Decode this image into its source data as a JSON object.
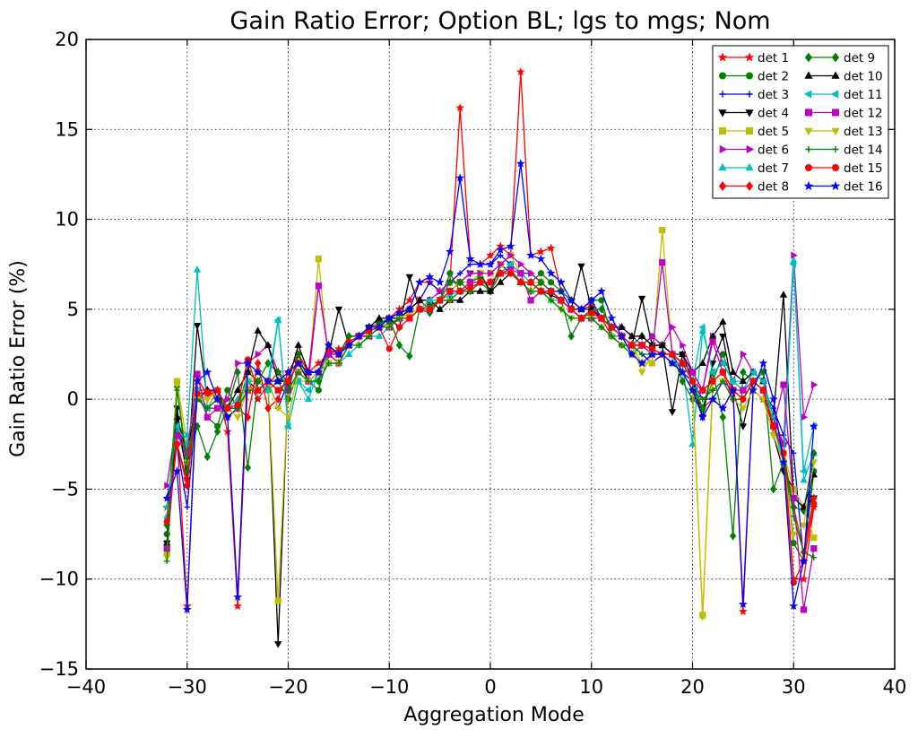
{
  "chart_data": {
    "type": "line",
    "title": "Gain Ratio Error; Option BL; lgs to mgs; Nom",
    "xlabel": "Aggregation Mode",
    "ylabel": "Gain Ratio Error (%)",
    "xlim": [
      -40,
      40
    ],
    "ylim": [
      -15,
      20
    ],
    "xticks": [
      -40,
      -30,
      -20,
      -10,
      0,
      10,
      20,
      30,
      40
    ],
    "yticks": [
      -15,
      -10,
      -5,
      0,
      5,
      10,
      15,
      20
    ],
    "xtick_labels": [
      "−40",
      "−30",
      "−20",
      "−10",
      "0",
      "10",
      "20",
      "30",
      "40"
    ],
    "ytick_labels": [
      "−15",
      "−10",
      "−5",
      "0",
      "5",
      "10",
      "15",
      "20"
    ],
    "grid": true,
    "legend_position": "top-right",
    "legend_columns": 2,
    "series": [
      {
        "name": "det 1",
        "color": "#ff0000",
        "marker": "star"
      },
      {
        "name": "det 2",
        "color": "#008000",
        "marker": "circle"
      },
      {
        "name": "det 3",
        "color": "#0000ff",
        "marker": "plus"
      },
      {
        "name": "det 4",
        "color": "#000000",
        "marker": "triangle-down"
      },
      {
        "name": "det 5",
        "color": "#bfbf00",
        "marker": "square"
      },
      {
        "name": "det 6",
        "color": "#bf00bf",
        "marker": "triangle-right"
      },
      {
        "name": "det 7",
        "color": "#00bfbf",
        "marker": "triangle-up"
      },
      {
        "name": "det 8",
        "color": "#ff0000",
        "marker": "diamond"
      },
      {
        "name": "det 9",
        "color": "#008000",
        "marker": "diamond"
      },
      {
        "name": "det 10",
        "color": "#000000",
        "marker": "triangle-up"
      },
      {
        "name": "det 11",
        "color": "#00bfbf",
        "marker": "triangle-left"
      },
      {
        "name": "det 12",
        "color": "#bf00bf",
        "marker": "square"
      },
      {
        "name": "det 13",
        "color": "#bfbf00",
        "marker": "triangle-down"
      },
      {
        "name": "det 14",
        "color": "#008000",
        "marker": "plus"
      },
      {
        "name": "det 15",
        "color": "#ff0000",
        "marker": "circle"
      },
      {
        "name": "det 16",
        "color": "#0000ff",
        "marker": "star"
      }
    ],
    "x": [
      -32,
      -31,
      -30,
      -29,
      -28,
      -27,
      -26,
      -25,
      -24,
      -23,
      -22,
      -21,
      -20,
      -19,
      -18,
      -17,
      -16,
      -15,
      -14,
      -13,
      -12,
      -11,
      -10,
      -9,
      -8,
      -7,
      -6,
      -5,
      -4,
      -3,
      -2,
      -1,
      0,
      1,
      2,
      3,
      4,
      5,
      6,
      7,
      8,
      9,
      10,
      11,
      12,
      13,
      14,
      15,
      16,
      17,
      18,
      19,
      20,
      21,
      22,
      23,
      24,
      25,
      26,
      27,
      28,
      29,
      30,
      31,
      32
    ],
    "values_by_series": [
      [
        -6.0,
        -2.0,
        -11.5,
        1.2,
        0.2,
        0.5,
        -1.8,
        -11.5,
        1.0,
        0.0,
        0.8,
        1.5,
        0.5,
        2.5,
        1.5,
        2.0,
        2.5,
        2.8,
        3.0,
        3.5,
        4.0,
        4.2,
        4.5,
        5.0,
        5.5,
        6.5,
        6.5,
        6.0,
        6.5,
        16.2,
        7.8,
        7.5,
        8.0,
        8.5,
        8.0,
        18.2,
        8.0,
        8.2,
        8.4,
        6.0,
        5.5,
        5.0,
        5.2,
        4.5,
        3.5,
        3.5,
        3.0,
        3.0,
        2.8,
        2.5,
        2.0,
        1.5,
        0.5,
        -0.5,
        0.0,
        -0.5,
        0.5,
        -11.8,
        0.5,
        0.0,
        -1.5,
        -2.5,
        -10.0,
        -10.0,
        -6.0
      ],
      [
        -7.5,
        -1.5,
        -4.0,
        0.5,
        -1.0,
        -1.5,
        0.5,
        -0.5,
        1.5,
        1.0,
        0.5,
        1.0,
        0.0,
        1.5,
        1.0,
        0.5,
        2.5,
        2.0,
        3.0,
        3.5,
        3.8,
        4.0,
        4.2,
        4.5,
        4.8,
        5.0,
        5.2,
        5.5,
        7.0,
        6.0,
        6.5,
        6.8,
        6.0,
        7.0,
        7.5,
        7.0,
        6.5,
        7.0,
        6.5,
        6.0,
        5.5,
        5.0,
        5.5,
        5.5,
        3.5,
        3.0,
        2.5,
        3.0,
        3.5,
        3.0,
        2.5,
        2.0,
        1.0,
        -0.5,
        1.0,
        2.5,
        1.0,
        0.5,
        1.5,
        1.0,
        -1.0,
        -2.5,
        -8.0,
        -9.0,
        -4.0
      ],
      [
        -5.5,
        -2.5,
        -6.0,
        0.0,
        -0.5,
        0.5,
        -1.0,
        -0.5,
        0.5,
        0.5,
        1.0,
        -0.5,
        1.0,
        2.0,
        1.5,
        1.5,
        3.0,
        2.5,
        3.5,
        3.5,
        3.8,
        4.0,
        4.5,
        4.8,
        5.0,
        5.5,
        6.5,
        6.0,
        6.5,
        7.0,
        7.5,
        7.5,
        7.5,
        8.0,
        7.5,
        7.0,
        7.0,
        6.5,
        6.0,
        6.0,
        5.0,
        5.0,
        5.5,
        4.5,
        4.0,
        3.5,
        3.0,
        2.5,
        2.0,
        2.5,
        2.5,
        1.5,
        1.0,
        0.0,
        0.0,
        1.0,
        0.5,
        0.0,
        1.0,
        0.5,
        -0.5,
        -2.0,
        -3.0,
        -9.0,
        -3.0
      ],
      [
        -8.0,
        -0.5,
        -4.5,
        4.1,
        0.0,
        0.5,
        -1.0,
        -0.5,
        1.0,
        0.5,
        1.0,
        -13.6,
        1.0,
        2.0,
        1.0,
        1.5,
        2.5,
        5.0,
        3.0,
        3.5,
        4.0,
        4.2,
        4.5,
        4.0,
        6.8,
        5.0,
        5.0,
        5.5,
        6.0,
        6.5,
        7.0,
        7.0,
        6.0,
        7.5,
        7.0,
        6.5,
        6.5,
        6.0,
        5.8,
        5.5,
        5.0,
        7.4,
        5.0,
        4.5,
        4.0,
        3.5,
        3.0,
        5.6,
        3.0,
        3.0,
        -0.7,
        2.5,
        1.0,
        -1.0,
        2.0,
        3.5,
        0.5,
        -1.5,
        1.0,
        1.5,
        -2.0,
        -4.0,
        -5.0,
        -6.0,
        -5.5
      ],
      [
        -8.5,
        1.0,
        -2.5,
        0.5,
        -0.5,
        0.5,
        -0.5,
        -0.5,
        1.0,
        1.5,
        1.0,
        -11.2,
        0.5,
        1.0,
        1.0,
        7.8,
        2.0,
        2.0,
        3.0,
        3.5,
        3.5,
        4.0,
        4.0,
        4.5,
        4.8,
        5.0,
        5.0,
        5.5,
        6.0,
        6.5,
        6.5,
        7.0,
        7.0,
        7.5,
        8.0,
        7.0,
        6.5,
        6.5,
        6.0,
        5.5,
        5.0,
        4.5,
        4.8,
        4.5,
        4.0,
        3.5,
        3.0,
        2.0,
        2.0,
        9.4,
        2.5,
        2.0,
        1.0,
        -12.0,
        1.0,
        1.5,
        0.5,
        0.5,
        1.0,
        0.5,
        -1.5,
        -3.0,
        -5.0,
        -6.0,
        -7.7
      ],
      [
        -4.8,
        -1.0,
        -3.5,
        0.5,
        -0.5,
        -0.5,
        0.0,
        2.0,
        2.0,
        2.5,
        3.0,
        1.5,
        1.0,
        2.0,
        1.5,
        6.3,
        2.5,
        2.0,
        3.0,
        3.5,
        3.5,
        4.0,
        4.5,
        4.5,
        5.0,
        5.5,
        5.5,
        6.0,
        6.5,
        6.5,
        7.0,
        7.0,
        7.0,
        7.5,
        8.0,
        7.5,
        7.0,
        6.5,
        6.0,
        5.5,
        5.0,
        4.5,
        5.0,
        4.5,
        4.0,
        4.0,
        3.5,
        3.0,
        3.5,
        3.0,
        4.0,
        3.0,
        1.5,
        0.5,
        3.5,
        2.0,
        1.0,
        2.5,
        1.5,
        1.0,
        -1.0,
        -2.5,
        8.0,
        -1.0,
        0.8
      ],
      [
        -6.5,
        -1.5,
        -2.0,
        7.2,
        -0.5,
        0.0,
        -0.5,
        0.0,
        1.0,
        1.0,
        0.5,
        4.4,
        -1.5,
        1.0,
        0.0,
        1.5,
        2.0,
        2.0,
        2.5,
        3.0,
        3.5,
        3.5,
        4.0,
        4.5,
        4.5,
        5.0,
        5.0,
        5.5,
        5.8,
        6.0,
        6.5,
        6.5,
        6.5,
        7.0,
        7.2,
        6.5,
        6.0,
        6.0,
        5.5,
        5.5,
        5.0,
        4.5,
        4.5,
        4.0,
        3.5,
        3.5,
        3.0,
        3.0,
        2.5,
        2.5,
        2.0,
        2.0,
        -2.5,
        3.8,
        1.5,
        2.0,
        1.0,
        1.0,
        1.5,
        1.0,
        -1.5,
        -3.5,
        7.7,
        -4.5,
        -3.0
      ],
      [
        -7.0,
        -2.5,
        -4.5,
        0.5,
        0.5,
        0.0,
        -0.5,
        -0.5,
        -1.0,
        2.0,
        -0.5,
        0.0,
        1.5,
        2.5,
        1.5,
        1.5,
        2.5,
        2.0,
        3.0,
        3.5,
        4.0,
        4.0,
        4.0,
        4.5,
        5.0,
        5.5,
        5.0,
        5.5,
        6.0,
        6.0,
        6.5,
        6.5,
        6.5,
        7.0,
        7.0,
        6.5,
        6.5,
        6.0,
        6.0,
        5.5,
        5.0,
        4.5,
        4.5,
        4.5,
        4.0,
        3.5,
        3.0,
        3.0,
        2.5,
        2.5,
        2.5,
        2.0,
        1.0,
        0.5,
        1.0,
        1.5,
        0.0,
        0.0,
        1.0,
        0.5,
        -1.5,
        -3.0,
        -6.0,
        -8.5,
        -5.5
      ],
      [
        -7.0,
        0.7,
        -4.0,
        -1.5,
        -3.2,
        -1.8,
        -0.5,
        1.5,
        -3.8,
        1.0,
        2.0,
        1.5,
        0.5,
        2.5,
        1.0,
        1.0,
        3.0,
        2.5,
        3.5,
        3.5,
        4.0,
        4.2,
        4.5,
        3.0,
        2.4,
        5.0,
        4.8,
        5.5,
        6.5,
        6.5,
        6.0,
        6.5,
        6.0,
        7.0,
        7.2,
        6.5,
        6.0,
        6.5,
        6.0,
        5.5,
        3.5,
        4.5,
        5.0,
        5.0,
        4.0,
        3.5,
        3.0,
        3.5,
        3.0,
        3.0,
        2.5,
        1.0,
        0.0,
        -0.5,
        1.5,
        -1.0,
        -7.6,
        1.5,
        1.0,
        1.5,
        -5.0,
        -3.5,
        -6.0,
        -6.2,
        -3.0
      ],
      [
        -8.0,
        -1.0,
        -3.0,
        0.0,
        0.5,
        0.5,
        -0.5,
        0.5,
        1.5,
        3.8,
        3.0,
        1.0,
        1.0,
        3.0,
        1.5,
        1.5,
        2.5,
        2.5,
        3.0,
        3.5,
        4.0,
        4.5,
        4.5,
        4.5,
        5.0,
        5.5,
        5.5,
        5.0,
        5.5,
        5.5,
        6.0,
        6.0,
        6.0,
        6.5,
        7.0,
        6.5,
        6.5,
        6.0,
        6.0,
        5.5,
        5.0,
        5.0,
        5.0,
        4.5,
        4.0,
        4.0,
        3.5,
        3.5,
        3.0,
        3.0,
        2.5,
        2.5,
        1.5,
        2.0,
        3.5,
        4.3,
        1.5,
        1.0,
        1.5,
        1.0,
        -1.0,
        5.8,
        -5.5,
        -6.0,
        -4.2
      ],
      [
        -6.0,
        -1.5,
        -2.5,
        0.5,
        -0.5,
        0.0,
        -0.5,
        -0.5,
        0.5,
        0.5,
        1.0,
        4.4,
        -1.5,
        1.0,
        0.5,
        1.5,
        2.5,
        2.5,
        3.0,
        3.5,
        3.5,
        4.0,
        4.0,
        4.5,
        4.5,
        5.0,
        5.5,
        5.5,
        6.0,
        6.0,
        6.5,
        6.5,
        6.5,
        7.0,
        7.5,
        7.0,
        6.5,
        6.0,
        6.0,
        5.5,
        5.0,
        4.5,
        4.8,
        4.5,
        4.0,
        3.5,
        3.0,
        3.0,
        2.5,
        2.5,
        2.0,
        2.0,
        1.0,
        4.0,
        1.5,
        2.0,
        1.0,
        0.5,
        1.5,
        1.0,
        -1.0,
        -3.5,
        7.5,
        -4.0,
        -1.5
      ],
      [
        -8.3,
        -2.0,
        -3.0,
        1.4,
        -1.0,
        -0.5,
        -0.5,
        -0.5,
        0.5,
        0.5,
        1.0,
        0.5,
        0.5,
        1.5,
        1.0,
        6.3,
        2.5,
        2.5,
        3.0,
        3.5,
        3.5,
        4.0,
        4.0,
        4.5,
        4.5,
        5.0,
        5.0,
        5.5,
        6.0,
        6.0,
        6.5,
        6.5,
        6.5,
        7.0,
        7.2,
        7.0,
        5.5,
        6.0,
        6.0,
        5.5,
        5.0,
        4.5,
        4.5,
        4.5,
        4.0,
        3.5,
        3.0,
        3.0,
        2.5,
        7.6,
        2.5,
        2.0,
        1.5,
        0.5,
        3.2,
        1.5,
        0.5,
        0.5,
        1.0,
        0.5,
        -1.5,
        0.8,
        -5.5,
        -11.7,
        -8.3
      ],
      [
        -8.8,
        0.8,
        -3.5,
        0.0,
        0.0,
        0.5,
        -0.5,
        -1.0,
        0.5,
        0.5,
        1.0,
        -0.5,
        -1.0,
        1.5,
        1.0,
        1.5,
        2.0,
        2.0,
        3.0,
        3.0,
        3.5,
        4.0,
        4.0,
        4.5,
        4.5,
        5.0,
        5.0,
        5.5,
        5.5,
        6.0,
        6.0,
        6.5,
        6.5,
        7.0,
        7.0,
        6.5,
        6.0,
        6.0,
        5.5,
        5.0,
        4.5,
        4.5,
        4.5,
        4.0,
        3.5,
        3.0,
        3.0,
        1.5,
        2.5,
        2.5,
        2.0,
        1.5,
        0.5,
        -12.1,
        0.5,
        1.0,
        0.0,
        -0.5,
        0.5,
        0.0,
        -2.0,
        -3.5,
        -7.5,
        -7.0,
        -3.5
      ],
      [
        -9.0,
        0.5,
        -3.5,
        0.0,
        -0.5,
        0.0,
        -0.5,
        -0.5,
        0.5,
        0.5,
        1.0,
        0.5,
        0.5,
        1.5,
        1.0,
        1.0,
        2.0,
        2.0,
        3.0,
        3.0,
        3.5,
        4.0,
        4.0,
        4.5,
        4.5,
        5.0,
        5.0,
        5.5,
        5.5,
        6.0,
        6.0,
        6.5,
        6.5,
        7.0,
        7.0,
        6.5,
        6.0,
        6.0,
        5.5,
        5.0,
        4.5,
        4.5,
        4.5,
        4.0,
        3.5,
        3.0,
        3.0,
        2.5,
        2.5,
        2.5,
        2.0,
        1.5,
        0.5,
        0.0,
        0.5,
        1.0,
        0.0,
        0.0,
        1.0,
        0.5,
        -1.5,
        -3.0,
        -6.5,
        -8.5,
        -8.8
      ],
      [
        -6.8,
        -2.5,
        -4.8,
        0.3,
        0.4,
        0.5,
        -0.5,
        -0.3,
        2.2,
        0.5,
        1.0,
        0.5,
        1.0,
        2.0,
        1.5,
        1.5,
        2.8,
        2.5,
        3.2,
        3.5,
        3.8,
        4.0,
        2.8,
        4.0,
        4.5,
        5.0,
        5.0,
        5.5,
        6.0,
        6.0,
        6.2,
        6.5,
        6.5,
        7.0,
        7.0,
        6.5,
        6.5,
        6.0,
        6.0,
        5.5,
        5.0,
        4.5,
        4.8,
        4.5,
        4.0,
        3.5,
        3.0,
        3.0,
        2.8,
        2.5,
        2.5,
        2.0,
        1.0,
        0.5,
        1.0,
        1.5,
        0.5,
        0.0,
        1.0,
        0.5,
        -1.5,
        -3.0,
        -10.2,
        -9.0,
        -5.8
      ],
      [
        -5.5,
        -4.0,
        -11.7,
        1.0,
        1.5,
        0.0,
        -1.0,
        -11.0,
        2.0,
        1.5,
        1.0,
        1.0,
        1.5,
        2.0,
        1.5,
        1.5,
        3.0,
        2.5,
        3.0,
        3.5,
        4.0,
        4.0,
        4.5,
        4.8,
        5.0,
        6.5,
        6.8,
        6.5,
        8.2,
        12.3,
        7.8,
        7.5,
        7.5,
        8.3,
        8.5,
        13.1,
        8.0,
        7.8,
        7.0,
        6.5,
        5.5,
        5.0,
        5.5,
        6.0,
        4.5,
        3.5,
        2.5,
        2.0,
        2.5,
        2.5,
        2.0,
        1.5,
        0.5,
        -1.0,
        0.0,
        -0.5,
        0.5,
        -11.4,
        0.5,
        2.0,
        0.0,
        -3.5,
        -11.5,
        -9.0,
        -1.5
      ]
    ]
  }
}
